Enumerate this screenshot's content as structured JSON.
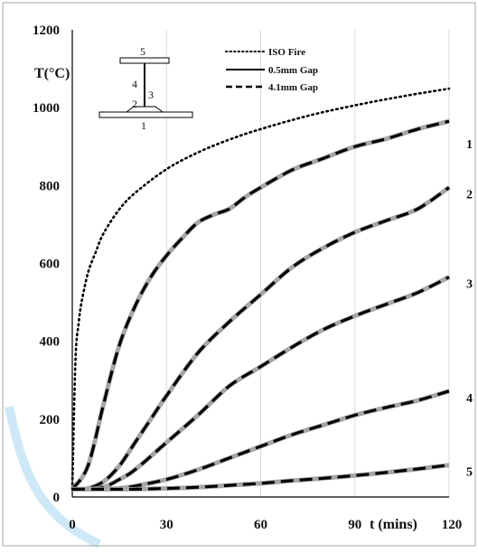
{
  "colors": {
    "grid": "#d9d9d9",
    "frame": "#a6a6a6",
    "iso": "#000000",
    "gap_05": "#a6a6a6",
    "gap_41": "#000000",
    "deco": "#cfe8f7"
  },
  "chart_data": {
    "type": "line",
    "ylabel": "T(°C)",
    "xlabel": "t (mins)",
    "xlim": [
      0,
      120
    ],
    "ylim": [
      0,
      1200
    ],
    "xticks": [
      0,
      30,
      60,
      90,
      120
    ],
    "yticks": [
      0,
      200,
      400,
      600,
      800,
      1000,
      1200
    ],
    "grid": "vertical",
    "legend_position": "top-left",
    "legend": [
      {
        "label": "ISO Fire",
        "style": "dotted",
        "series": "iso"
      },
      {
        "label": "0.5mm Gap",
        "style": "solid",
        "series": "gap05"
      },
      {
        "label": "4.1mm Gap",
        "style": "dashed",
        "series": "gap41"
      }
    ],
    "iso_fire": {
      "name": "ISO Fire",
      "x": [
        0,
        1,
        2,
        3,
        5,
        7.5,
        10,
        15,
        20,
        30,
        40,
        50,
        60,
        75,
        90,
        105,
        120
      ],
      "y": [
        20,
        349,
        445,
        502,
        576,
        630,
        678,
        739,
        781,
        842,
        885,
        918,
        945,
        979,
        1006,
        1029,
        1049
      ]
    },
    "curves": [
      {
        "label": "1",
        "x": [
          0,
          5,
          10,
          15,
          20,
          25,
          30,
          35,
          40,
          45,
          50,
          55,
          60,
          70,
          80,
          90,
          100,
          110,
          120
        ],
        "y": [
          20,
          80,
          240,
          390,
          490,
          565,
          620,
          665,
          705,
          725,
          740,
          770,
          795,
          840,
          870,
          900,
          920,
          945,
          965
        ]
      },
      {
        "label": "2",
        "x": [
          0,
          5,
          10,
          15,
          20,
          25,
          30,
          40,
          50,
          60,
          70,
          80,
          90,
          100,
          110,
          120
        ],
        "y": [
          20,
          22,
          40,
          80,
          140,
          200,
          260,
          370,
          450,
          520,
          590,
          640,
          680,
          710,
          740,
          795
        ]
      },
      {
        "label": "3",
        "x": [
          0,
          5,
          10,
          15,
          20,
          30,
          40,
          50,
          60,
          70,
          80,
          90,
          100,
          110,
          120
        ],
        "y": [
          20,
          20,
          25,
          45,
          70,
          140,
          210,
          285,
          335,
          385,
          430,
          465,
          495,
          525,
          565
        ]
      },
      {
        "label": "4",
        "x": [
          0,
          5,
          10,
          15,
          20,
          30,
          40,
          50,
          60,
          70,
          80,
          90,
          100,
          110,
          120
        ],
        "y": [
          20,
          20,
          20,
          22,
          28,
          45,
          70,
          100,
          130,
          160,
          185,
          210,
          230,
          248,
          272
        ]
      },
      {
        "label": "5",
        "x": [
          0,
          10,
          20,
          30,
          40,
          50,
          60,
          70,
          80,
          90,
          100,
          110,
          120
        ],
        "y": [
          20,
          20,
          20,
          22,
          25,
          30,
          35,
          42,
          48,
          55,
          63,
          72,
          82
        ]
      }
    ]
  }
}
